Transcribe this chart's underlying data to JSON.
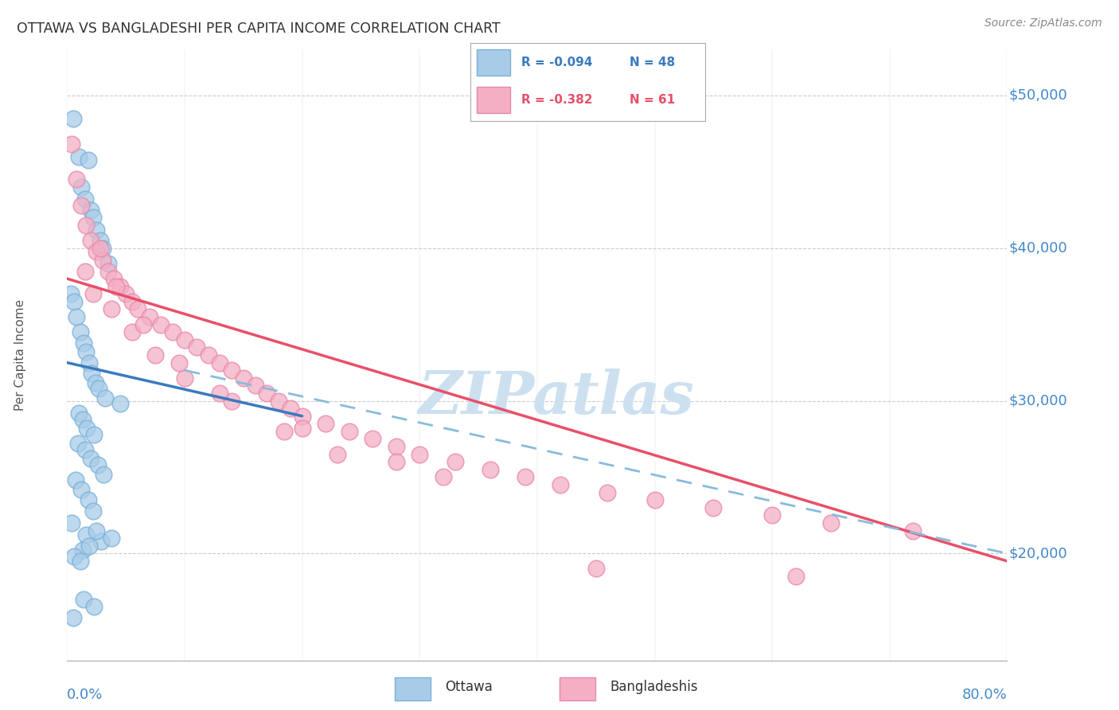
{
  "title": "OTTAWA VS BANGLADESHI PER CAPITA INCOME CORRELATION CHART",
  "source": "Source: ZipAtlas.com",
  "ylabel": "Per Capita Income",
  "yticks": [
    20000,
    30000,
    40000,
    50000
  ],
  "ytick_labels": [
    "$20,000",
    "$30,000",
    "$40,000",
    "$50,000"
  ],
  "ylim": [
    13000,
    53000
  ],
  "xlim": [
    0.0,
    80.0
  ],
  "ottawa_color": "#a8cce8",
  "bangladeshi_color": "#f4afc5",
  "ottawa_edge": "#7ab0d8",
  "bangladeshi_edge": "#e888a8",
  "trend_ottawa_color": "#3a7abf",
  "trend_bangladeshi_color": "#e8506a",
  "trend_dashed_color": "#88bbdd",
  "watermark_color": "#cce0f0",
  "ottawa_x": [
    0.5,
    1.0,
    1.2,
    1.5,
    1.8,
    2.0,
    2.2,
    2.5,
    2.8,
    3.0,
    3.5,
    0.3,
    0.6,
    0.8,
    1.1,
    1.4,
    1.6,
    1.9,
    2.1,
    2.4,
    2.7,
    3.2,
    4.5,
    1.0,
    1.3,
    1.7,
    2.3,
    0.9,
    1.5,
    2.0,
    2.6,
    3.1,
    0.7,
    1.2,
    1.8,
    2.2,
    0.4,
    1.6,
    2.9,
    1.3,
    0.6,
    1.1,
    1.9,
    2.5,
    3.8,
    0.5,
    1.4,
    2.3
  ],
  "ottawa_y": [
    48500,
    46000,
    44000,
    43200,
    45800,
    42500,
    42000,
    41200,
    40500,
    40000,
    39000,
    37000,
    36500,
    35500,
    34500,
    33800,
    33200,
    32500,
    31800,
    31200,
    30800,
    30200,
    29800,
    29200,
    28800,
    28200,
    27800,
    27200,
    26800,
    26200,
    25800,
    25200,
    24800,
    24200,
    23500,
    22800,
    22000,
    21200,
    20800,
    20200,
    19800,
    19500,
    20500,
    21500,
    21000,
    15800,
    17000,
    16500
  ],
  "bangladeshi_x": [
    0.4,
    0.8,
    1.2,
    1.6,
    2.0,
    2.5,
    3.0,
    3.5,
    4.0,
    4.5,
    5.0,
    5.5,
    6.0,
    7.0,
    8.0,
    9.0,
    10.0,
    11.0,
    12.0,
    13.0,
    14.0,
    15.0,
    16.0,
    17.0,
    18.0,
    19.0,
    20.0,
    22.0,
    24.0,
    26.0,
    28.0,
    30.0,
    33.0,
    36.0,
    39.0,
    42.0,
    46.0,
    50.0,
    55.0,
    60.0,
    65.0,
    72.0,
    1.5,
    2.2,
    3.8,
    5.5,
    7.5,
    10.0,
    14.0,
    20.0,
    28.0,
    2.8,
    4.2,
    6.5,
    9.5,
    13.0,
    18.5,
    23.0,
    32.0,
    45.0,
    62.0
  ],
  "bangladeshi_y": [
    46800,
    44500,
    42800,
    41500,
    40500,
    39800,
    39200,
    38500,
    38000,
    37500,
    37000,
    36500,
    36000,
    35500,
    35000,
    34500,
    34000,
    33500,
    33000,
    32500,
    32000,
    31500,
    31000,
    30500,
    30000,
    29500,
    29000,
    28500,
    28000,
    27500,
    27000,
    26500,
    26000,
    25500,
    25000,
    24500,
    24000,
    23500,
    23000,
    22500,
    22000,
    21500,
    38500,
    37000,
    36000,
    34500,
    33000,
    31500,
    30000,
    28200,
    26000,
    40000,
    37500,
    35000,
    32500,
    30500,
    28000,
    26500,
    25000,
    19000,
    18500
  ],
  "trend_ottawa_x0": 0.0,
  "trend_ottawa_x1": 20.0,
  "trend_ottawa_y0": 32500,
  "trend_ottawa_y1": 29000,
  "trend_bangladeshi_x0": 0.0,
  "trend_bangladeshi_x1": 80.0,
  "trend_bangladeshi_y0": 38000,
  "trend_bangladeshi_y1": 19500,
  "trend_dashed_x0": 10.0,
  "trend_dashed_x1": 80.0,
  "trend_dashed_y0": 32000,
  "trend_dashed_y1": 20000
}
